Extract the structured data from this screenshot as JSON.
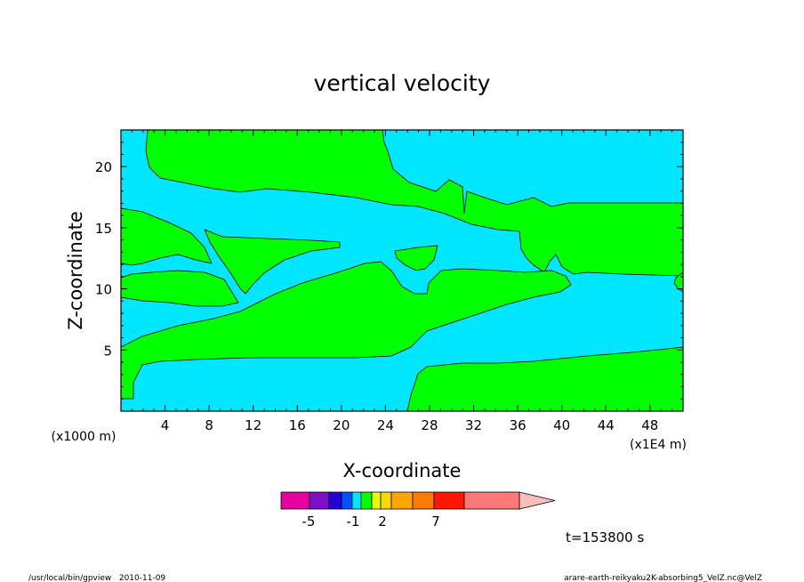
{
  "chart_data": {
    "type": "contour",
    "title": "vertical velocity",
    "xlabel": "X-coordinate",
    "ylabel": "Z-coordinate",
    "x_unit_left": "(x1000 m)",
    "x_unit_right": "(x1E4 m)",
    "xlim": [
      0,
      51
    ],
    "ylim": [
      0,
      23
    ],
    "x_ticks": [
      "4",
      "8",
      "12",
      "16",
      "20",
      "24",
      "28",
      "32",
      "36",
      "40",
      "44",
      "48"
    ],
    "y_ticks": [
      "5",
      "10",
      "15",
      "20"
    ],
    "colors": {
      "negative": "#00e6ff",
      "positive": "#00ff00",
      "frame": "#000000"
    },
    "colorbar": {
      "labels": [
        "-5",
        "-1",
        "2",
        "7"
      ],
      "colors": [
        "#e600a0",
        "#7b10c8",
        "#2400d8",
        "#0050ff",
        "#00e6ff",
        "#00ff00",
        "#e6ff00",
        "#ffd700",
        "#ffa500",
        "#ff7a00",
        "#ff1800",
        "#ff7878",
        "#ffbcbc"
      ]
    },
    "time_label": "t=153800 s"
  },
  "footer": {
    "left": "/usr/local/bin/gpview   2010-11-09",
    "right": "arare-earth-reikyaku2K-absorbing5_VelZ.nc@VelZ"
  }
}
